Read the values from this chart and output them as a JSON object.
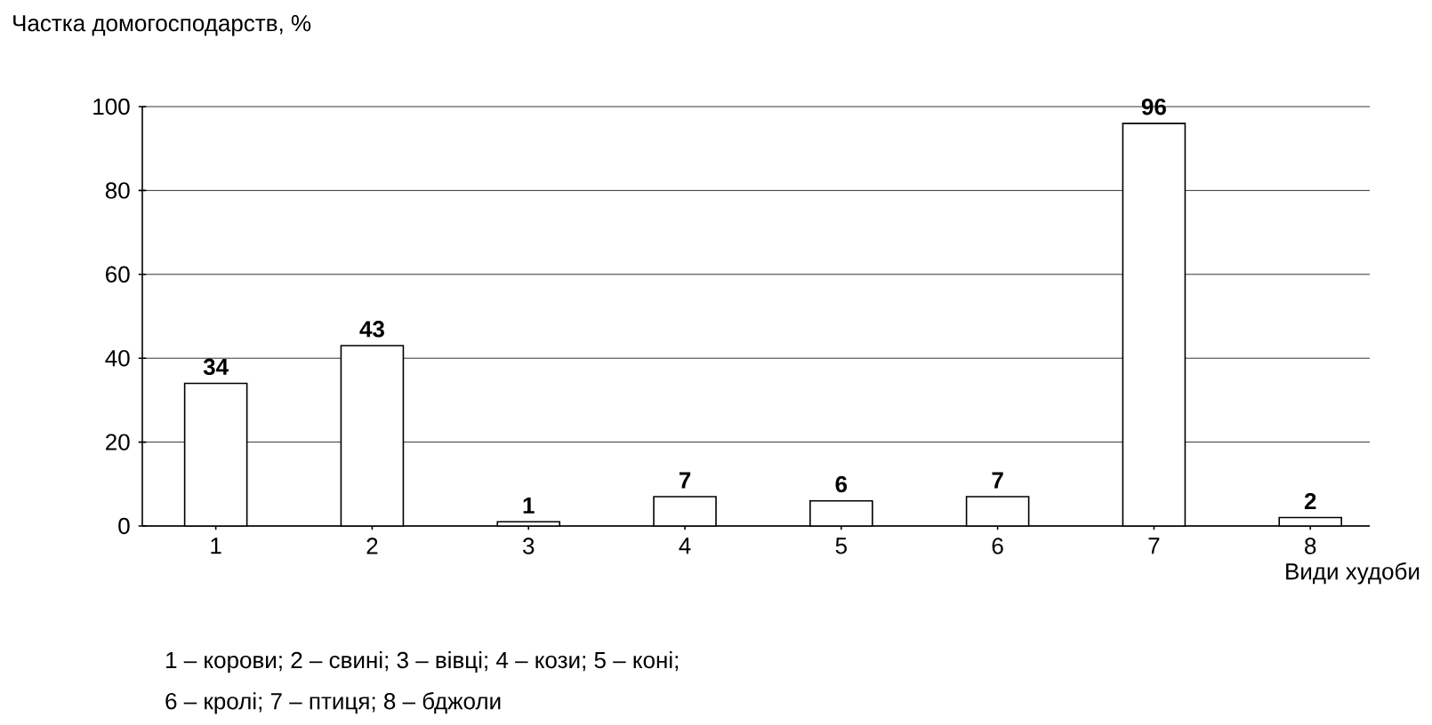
{
  "chart_data": {
    "type": "bar",
    "ylabel": "Частка домогосподарств, %",
    "xlabel": "Види худоби",
    "categories": [
      "1",
      "2",
      "3",
      "4",
      "5",
      "6",
      "7",
      "8"
    ],
    "values": [
      34,
      43,
      1,
      7,
      6,
      7,
      96,
      2
    ],
    "color": "#000000",
    "ylim": [
      0,
      100
    ],
    "yticks": [
      0,
      20,
      40,
      60,
      80,
      100
    ],
    "grid": "y",
    "data_labels": true,
    "annotations": [
      "1 – корови;  2 – свині;  3 – вівці;  4 – кози; 5  – коні;",
      "6 – кролі; 7 – птиця;  8 – бджоли"
    ]
  }
}
